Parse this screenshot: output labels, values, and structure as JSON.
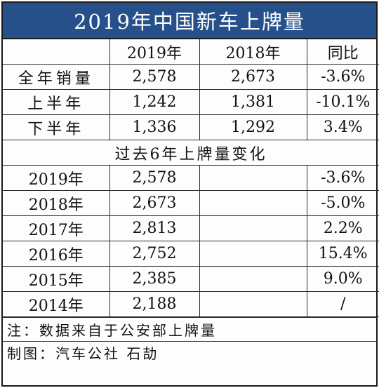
{
  "title": "2019年中国新车上牌量",
  "header": {
    "col_blank": "",
    "col_2019": "2019年",
    "col_2018": "2018年",
    "col_yoy": "同比"
  },
  "summary_rows": [
    {
      "label": "全年销量",
      "v2019": "2,578",
      "v2018": "2,673",
      "yoy": "-3.6%"
    },
    {
      "label": "上半年",
      "v2019": "1,242",
      "v2018": "1,381",
      "yoy": "-10.1%"
    },
    {
      "label": "下半年",
      "v2019": "1,336",
      "v2018": "1,292",
      "yoy": "3.4%"
    }
  ],
  "section_title": "过去6年上牌量变化",
  "history_rows": [
    {
      "year": "2019年",
      "value": "2,578",
      "blank": "",
      "change": "-3.6%"
    },
    {
      "year": "2018年",
      "value": "2,673",
      "blank": "",
      "change": "-5.0%"
    },
    {
      "year": "2017年",
      "value": "2,813",
      "blank": "",
      "change": "2.2%"
    },
    {
      "year": "2016年",
      "value": "2,752",
      "blank": "",
      "change": "15.4%"
    },
    {
      "year": "2015年",
      "value": "2,385",
      "blank": "",
      "change": "9.0%"
    },
    {
      "year": "2014年",
      "value": "2,188",
      "blank": "",
      "change": "/"
    }
  ],
  "note": "注：数据来自于公安部上牌量",
  "credit": "制图：汽车公社 石劼",
  "colors": {
    "title_bg": "#25508a",
    "title_text": "#ffffff",
    "border": "#2a2a2a"
  }
}
